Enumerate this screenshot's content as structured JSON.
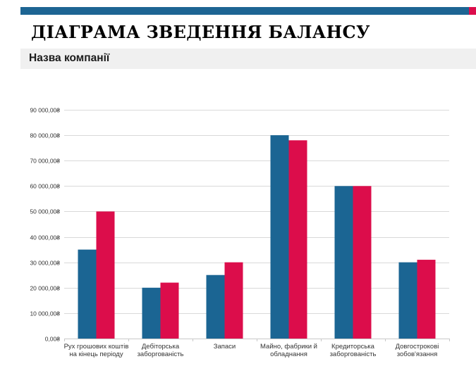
{
  "header": {
    "title": "ДІАГРАМА ЗВЕДЕННЯ БАЛАНСУ",
    "company": "Назва компанії"
  },
  "colors": {
    "bar_bar": "#1d6593",
    "accent": "#dc0d4b",
    "series_1": "#1b6593",
    "series_2": "#dc0d4b",
    "band": "#f0f0f0",
    "grid": "#d9d9d9"
  },
  "chart_data": {
    "type": "bar",
    "title": "",
    "xlabel": "",
    "ylabel": "",
    "ylim": [
      0,
      90000
    ],
    "yticks": [
      0,
      10000,
      20000,
      30000,
      40000,
      50000,
      60000,
      70000,
      80000,
      90000
    ],
    "ytick_labels": [
      "0,00₴",
      "10 000,00₴",
      "20 000,00₴",
      "30 000,00₴",
      "40 000,00₴",
      "50 000,00₴",
      "60 000,00₴",
      "70 000,00₴",
      "80 000,00₴",
      "90 000,00₴"
    ],
    "grid": true,
    "legend": "none",
    "categories": [
      [
        "Рух грошових коштів",
        "на кінець періоду"
      ],
      [
        "Дебіторська",
        "заборгованість"
      ],
      [
        "Запаси"
      ],
      [
        "Майно, фабрики й",
        "обладнання"
      ],
      [
        "Кредиторська",
        "заборгованість"
      ],
      [
        "Довгострокові",
        "зобов'язання"
      ]
    ],
    "series": [
      {
        "color": "#1b6593",
        "values": [
          35000,
          20000,
          25000,
          80000,
          60000,
          30000
        ]
      },
      {
        "color": "#dc0d4b",
        "values": [
          50000,
          22000,
          30000,
          78000,
          60000,
          31000
        ]
      }
    ]
  }
}
